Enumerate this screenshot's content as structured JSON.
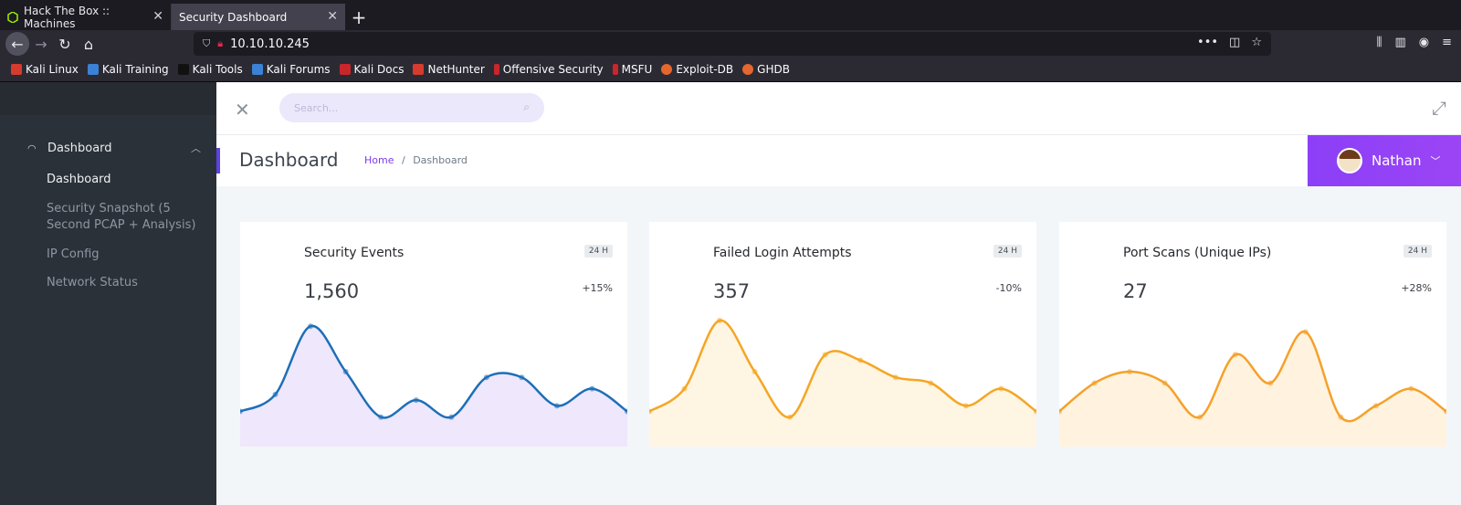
{
  "browser": {
    "tabs": [
      {
        "title": "Hack The Box :: Machines",
        "active": false
      },
      {
        "title": "Security Dashboard",
        "active": true
      }
    ],
    "url": "10.10.10.245",
    "bookmarks": [
      "Kali Linux",
      "Kali Training",
      "Kali Tools",
      "Kali Forums",
      "Kali Docs",
      "NetHunter",
      "Offensive Security",
      "MSFU",
      "Exploit-DB",
      "GHDB"
    ]
  },
  "sidebar": {
    "group_label": "Dashboard",
    "items": [
      {
        "label": "Dashboard",
        "current": true
      },
      {
        "label": "Security Snapshot (5 Second PCAP + Analysis)",
        "current": false
      },
      {
        "label": "IP Config",
        "current": false
      },
      {
        "label": "Network Status",
        "current": false
      }
    ]
  },
  "topbar": {
    "search_placeholder": "Search..."
  },
  "header": {
    "title": "Dashboard",
    "breadcrumb": {
      "home": "Home",
      "separator": "/",
      "current": "Dashboard"
    },
    "user_name": "Nathan"
  },
  "cards": [
    {
      "title": "Security Events",
      "value": "1,560",
      "badge": "24 H",
      "delta": "+15%",
      "color": "#1d6fb8",
      "fill": "#efe7fb"
    },
    {
      "title": "Failed Login Attempts",
      "value": "357",
      "badge": "24 H",
      "delta": "-10%",
      "color": "#f5a623",
      "fill": "#fff5e3"
    },
    {
      "title": "Port Scans (Unique IPs)",
      "value": "27",
      "badge": "24 H",
      "delta": "+28%",
      "color": "#f5a12a",
      "fill": "#fff3df"
    }
  ],
  "chart_data": [
    {
      "type": "area",
      "series": [
        {
          "values": [
            2,
            5,
            17,
            9,
            1,
            4,
            1,
            8,
            8,
            3,
            6,
            2
          ]
        }
      ]
    },
    {
      "type": "area",
      "series": [
        {
          "values": [
            2,
            6,
            18,
            9,
            1,
            12,
            11,
            8,
            7,
            3,
            6,
            2
          ]
        }
      ]
    },
    {
      "type": "area",
      "series": [
        {
          "values": [
            2,
            7,
            9,
            7,
            1,
            12,
            7,
            16,
            1,
            3,
            6,
            2
          ]
        }
      ]
    }
  ]
}
